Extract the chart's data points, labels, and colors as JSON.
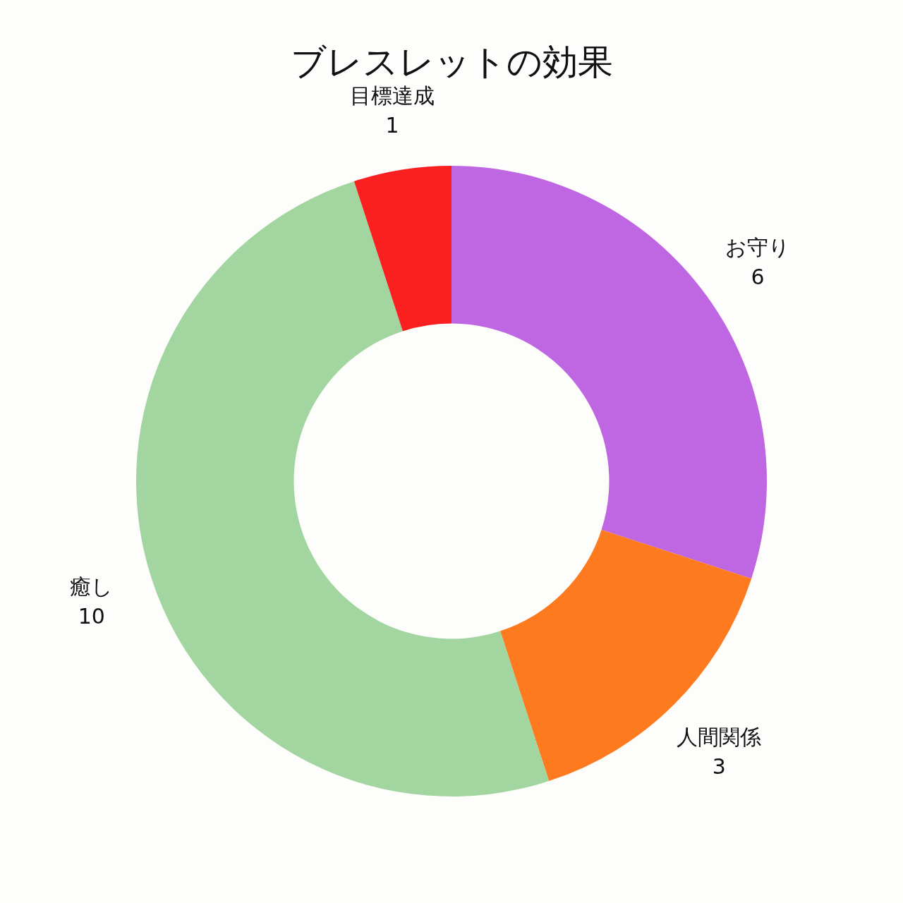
{
  "chart_data": {
    "type": "donut",
    "title": "ブレスレットの効果",
    "categories": [
      "お守り",
      "人間関係",
      "癒し",
      "目標達成"
    ],
    "values": [
      6,
      3,
      10,
      1
    ],
    "colors": [
      "#bf66e3",
      "#fd7a1f",
      "#a2d5a0",
      "#f9201f"
    ],
    "data_labels": true
  }
}
